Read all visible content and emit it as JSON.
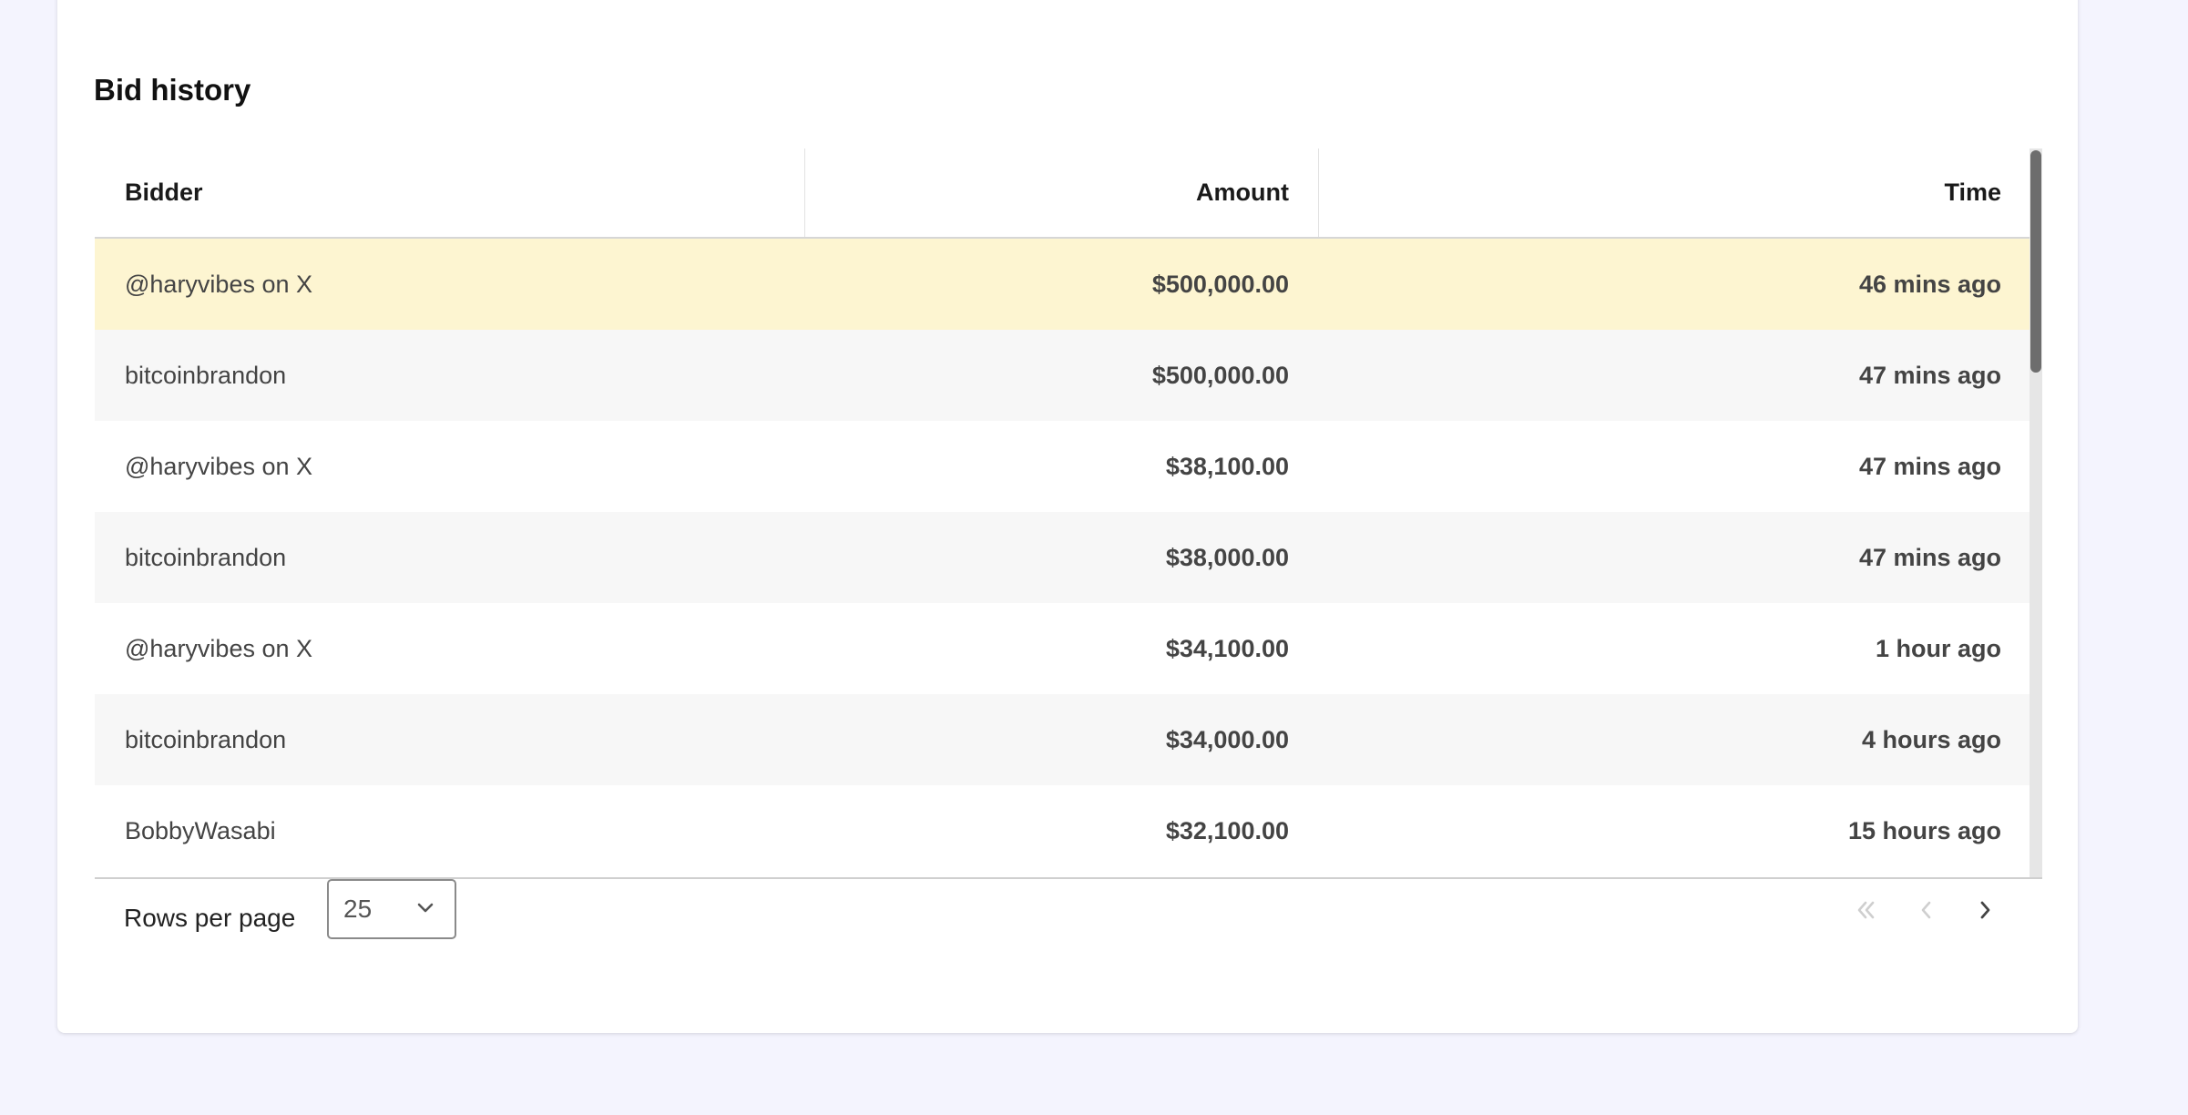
{
  "section": {
    "title": "Bid history"
  },
  "table": {
    "columns": [
      "Bidder",
      "Amount",
      "Time"
    ],
    "rows": [
      {
        "bidder": "@haryvibes on X",
        "amount": "$500,000.00",
        "time": "46 mins ago"
      },
      {
        "bidder": "bitcoinbrandon",
        "amount": "$500,000.00",
        "time": "47 mins ago"
      },
      {
        "bidder": "@haryvibes on X",
        "amount": "$38,100.00",
        "time": "47 mins ago"
      },
      {
        "bidder": "bitcoinbrandon",
        "amount": "$38,000.00",
        "time": "47 mins ago"
      },
      {
        "bidder": "@haryvibes on X",
        "amount": "$34,100.00",
        "time": "1 hour ago"
      },
      {
        "bidder": "bitcoinbrandon",
        "amount": "$34,000.00",
        "time": "4 hours ago"
      },
      {
        "bidder": "BobbyWasabi",
        "amount": "$32,100.00",
        "time": "15 hours ago"
      }
    ],
    "highlight_color": "#fdf5d1"
  },
  "pagination": {
    "rows_per_page_label": "Rows per page",
    "rows_per_page_value": "25",
    "icons": [
      "first-page-icon",
      "previous-page-icon",
      "next-page-icon"
    ]
  }
}
